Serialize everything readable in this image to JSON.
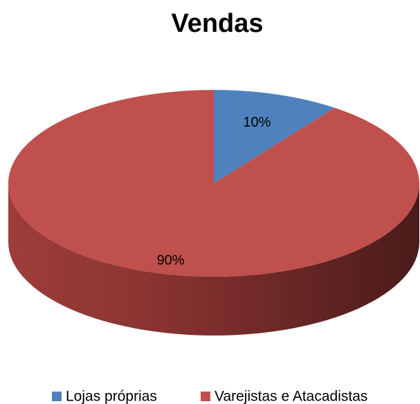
{
  "chart_data": {
    "type": "pie",
    "title": "Vendas",
    "categories": [
      "Lojas próprias",
      "Varejistas e Atacadistas"
    ],
    "values": [
      10,
      90
    ],
    "value_labels": [
      "10%",
      "90%"
    ],
    "colors": [
      "#4f81bd",
      "#c0504d"
    ],
    "legend": "bottom"
  }
}
